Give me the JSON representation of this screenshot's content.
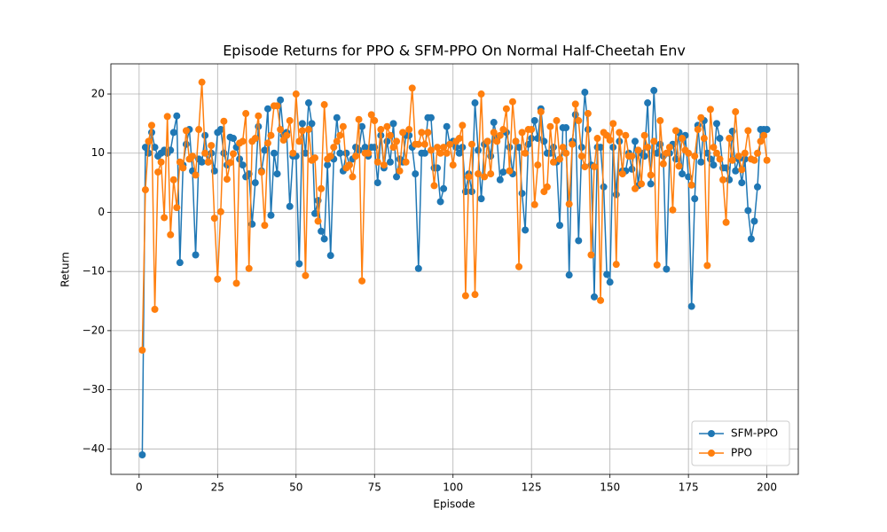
{
  "chart_data": {
    "type": "line",
    "title": "Episode Returns for PPO & SFM-PPO On Normal Half-Cheetah Env",
    "xlabel": "Episode",
    "ylabel": "Return",
    "x": [
      1,
      2,
      3,
      4,
      5,
      6,
      7,
      8,
      9,
      10,
      11,
      12,
      13,
      14,
      15,
      16,
      17,
      18,
      19,
      20,
      21,
      22,
      23,
      24,
      25,
      26,
      27,
      28,
      29,
      30,
      31,
      32,
      33,
      34,
      35,
      36,
      37,
      38,
      39,
      40,
      41,
      42,
      43,
      44,
      45,
      46,
      47,
      48,
      49,
      50,
      51,
      52,
      53,
      54,
      55,
      56,
      57,
      58,
      59,
      60,
      61,
      62,
      63,
      64,
      65,
      66,
      67,
      68,
      69,
      70,
      71,
      72,
      73,
      74,
      75,
      76,
      77,
      78,
      79,
      80,
      81,
      82,
      83,
      84,
      85,
      86,
      87,
      88,
      89,
      90,
      91,
      92,
      93,
      94,
      95,
      96,
      97,
      98,
      99,
      100,
      101,
      102,
      103,
      104,
      105,
      106,
      107,
      108,
      109,
      110,
      111,
      112,
      113,
      114,
      115,
      116,
      117,
      118,
      119,
      120,
      121,
      122,
      123,
      124,
      125,
      126,
      127,
      128,
      129,
      130,
      131,
      132,
      133,
      134,
      135,
      136,
      137,
      138,
      139,
      140,
      141,
      142,
      143,
      144,
      145,
      146,
      147,
      148,
      149,
      150,
      151,
      152,
      153,
      154,
      155,
      156,
      157,
      158,
      159,
      160,
      161,
      162,
      163,
      164,
      165,
      166,
      167,
      168,
      169,
      170,
      171,
      172,
      173,
      174,
      175,
      176,
      177,
      178,
      179,
      180,
      181,
      182,
      183,
      184,
      185,
      186,
      187,
      188,
      189,
      190,
      191,
      192,
      193,
      194,
      195,
      196,
      197,
      198,
      199,
      200
    ],
    "series": [
      {
        "name": "SFM-PPO",
        "color": "#1f77b4",
        "values": [
          -41,
          11,
          10,
          13.5,
          11,
          9.5,
          10,
          10.5,
          10,
          10.5,
          13.5,
          16.3,
          -8.5,
          8,
          11.5,
          14,
          7,
          -7.2,
          9,
          8.5,
          13,
          8.5,
          10,
          7,
          13.5,
          14,
          10,
          8,
          12.7,
          12.5,
          11,
          9,
          8,
          6,
          6.5,
          -2,
          5,
          14.5,
          7,
          10.5,
          17.5,
          -0.5,
          10,
          6.5,
          19,
          13,
          13.5,
          1,
          9.5,
          9.5,
          -8.7,
          15,
          10,
          18.5,
          15,
          -0.2,
          2,
          -3.2,
          -4.5,
          8,
          -7.3,
          9,
          16,
          10,
          7,
          10,
          8,
          9,
          11,
          10.5,
          14.5,
          11,
          9.5,
          11,
          11,
          5,
          13,
          7.5,
          12,
          8.5,
          15,
          6,
          9,
          8.5,
          13,
          13,
          11,
          6.5,
          -9.5,
          10,
          10,
          16,
          16,
          7.5,
          7.5,
          1.8,
          4,
          14.5,
          11.5,
          12,
          11,
          10,
          11,
          3.5,
          6.5,
          3.5,
          18.5,
          10.5,
          2.3,
          11.5,
          12,
          9.5,
          15.2,
          12.5,
          5.5,
          6.8,
          13.5,
          11,
          6.5,
          12,
          11,
          3.2,
          -3,
          11.5,
          12.5,
          15.5,
          12.5,
          17.5,
          12,
          10,
          10,
          11,
          8.5,
          -2.2,
          14.3,
          14.3,
          -10.6,
          12,
          16.5,
          -4.8,
          11,
          20.3,
          14,
          8,
          -14.3,
          11,
          11,
          4.3,
          -10.5,
          -11.8,
          11,
          3,
          12,
          7,
          7,
          10,
          7.3,
          12,
          4.5,
          10,
          9.5,
          18.5,
          4.8,
          20.6,
          10,
          11.5,
          9.5,
          -9.6,
          10,
          11.5,
          9,
          13.5,
          6.5,
          13,
          6,
          -15.9,
          2.3,
          14.7,
          8.5,
          15.5,
          10,
          9,
          8,
          15,
          12.5,
          7.5,
          7.5,
          5.5,
          13.7,
          7,
          9,
          5,
          9,
          0.3,
          -4.5,
          -1.5,
          4.3,
          14,
          14,
          14
        ]
      },
      {
        "name": "PPO",
        "color": "#ff7f0e",
        "values": [
          -23.3,
          3.8,
          12,
          14.7,
          -16.4,
          6.8,
          8.5,
          -0.9,
          16.2,
          -3.8,
          5.5,
          0.8,
          8.5,
          7.5,
          13.8,
          9,
          9.5,
          6.3,
          14,
          22,
          10,
          8.5,
          11.3,
          -1,
          -11.3,
          0.1,
          15.4,
          5.6,
          8.4,
          9.9,
          -12,
          11.7,
          12,
          16.7,
          -9.5,
          12,
          12.5,
          16.3,
          6.8,
          -2.2,
          11.7,
          13,
          18,
          18,
          14,
          12.2,
          13,
          15.5,
          10,
          20,
          12,
          13.8,
          -10.7,
          14,
          8.8,
          9.2,
          -1.5,
          4,
          18.2,
          9,
          9.5,
          11,
          12,
          13,
          14.5,
          7.5,
          8,
          6,
          9.5,
          15.7,
          -11.6,
          10,
          10,
          16.5,
          15.5,
          8.5,
          14,
          8,
          14.5,
          13,
          11,
          12,
          7,
          13.5,
          8.5,
          14,
          21,
          11.5,
          11.5,
          13.5,
          11.5,
          13.5,
          10.5,
          4.5,
          11,
          10,
          11,
          10,
          11.5,
          8,
          12,
          12.5,
          14.7,
          -14.1,
          6,
          11.5,
          -13.9,
          6.5,
          20,
          6,
          12,
          6.5,
          13.5,
          12,
          13,
          14,
          17.5,
          7,
          18.7,
          12,
          -9.2,
          13.5,
          10,
          14,
          14,
          1.3,
          8,
          17,
          3.5,
          4.3,
          14.5,
          8.5,
          15.5,
          9,
          11,
          10,
          1.4,
          11.5,
          18.3,
          15.5,
          9.5,
          7.7,
          16.7,
          -7.2,
          7.7,
          12.5,
          -14.9,
          13.5,
          13,
          12.2,
          15,
          -8.8,
          13.5,
          6.5,
          13,
          9.5,
          9.5,
          4,
          10.5,
          4.8,
          13,
          11,
          6.3,
          12,
          -8.9,
          15.5,
          8.2,
          10,
          11,
          0.4,
          13.8,
          7.8,
          12.5,
          10.5,
          10,
          4.6,
          9.5,
          14,
          16,
          12.5,
          -9,
          17.4,
          11,
          10,
          9,
          5.5,
          -1.7,
          12.5,
          8.8,
          17,
          9.5,
          7.2,
          10,
          13.8,
          9,
          8.8,
          10,
          12,
          13,
          8.8
        ]
      }
    ],
    "xlim": [
      -9,
      210
    ],
    "xticks": [
      0,
      25,
      50,
      75,
      100,
      125,
      150,
      175,
      200
    ],
    "ylim": [
      -44.3,
      25.1
    ],
    "yticks": [
      {
        "value": -40,
        "label": "−40"
      },
      {
        "value": -30,
        "label": "−30"
      },
      {
        "value": -20,
        "label": "−20"
      },
      {
        "value": -10,
        "label": "−10"
      },
      0,
      10,
      20
    ],
    "grid": true,
    "legend": "lower right"
  }
}
